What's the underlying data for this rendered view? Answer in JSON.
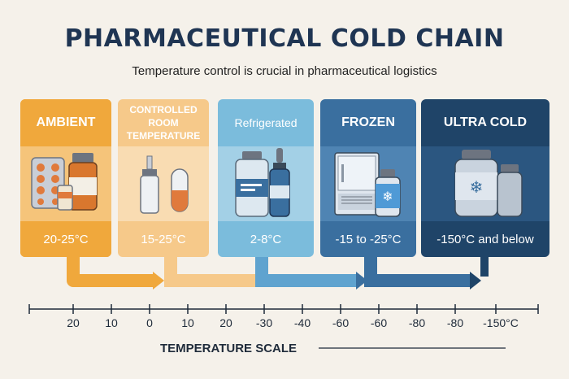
{
  "title": "PHARMACEUTICAL COLD CHAIN",
  "subtitle": "Temperature control is crucial in pharmaceutical logistics",
  "stages": [
    {
      "name": "AMBIENT",
      "range": "20-25°C",
      "color": "#f0a83c"
    },
    {
      "name": "CONTROLLED ROOM TEMPERATURE",
      "name_lines": [
        "CONTROLLED",
        "ROOM",
        "TEMPERATURE"
      ],
      "range": "15-25°C",
      "color": "#f6c98a"
    },
    {
      "name": "Refrigerated",
      "range": "2-8°C",
      "color": "#7bbcdc"
    },
    {
      "name": "FROZEN",
      "range": "-15 to -25°C",
      "color": "#3a6f9f"
    },
    {
      "name": "ULTRA COLD",
      "range": "-150°C and below",
      "color": "#1f4468"
    }
  ],
  "scale": {
    "label": "TEMPERATURE SCALE",
    "ticks": [
      "20",
      "10",
      "0",
      "10",
      "20",
      "-30",
      "-40",
      "-60",
      "-60",
      "-80",
      "-80",
      "-150°C"
    ]
  },
  "icons": [
    "pill-blister-icon",
    "medicine-bottle-icon",
    "nasal-spray-icon",
    "capsule-icon",
    "vial-icon",
    "dropper-bottle-icon",
    "freezer-icon",
    "frozen-vial-icon",
    "ultra-cold-container-icon"
  ]
}
